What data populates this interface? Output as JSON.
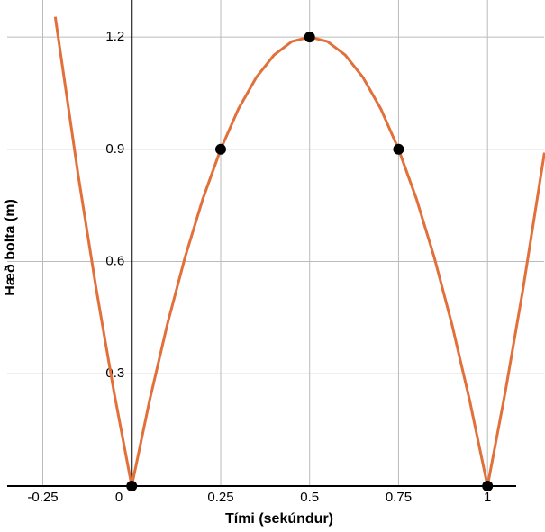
{
  "chart_data": {
    "type": "line",
    "x_label": "Tími (sekúndur)",
    "y_label": "Hæð bolta (m)",
    "xlim": [
      -0.35,
      1.159
    ],
    "ylim": [
      0,
      1.3
    ],
    "xticks": [
      -0.25,
      0,
      0.25,
      0.5,
      0.75,
      1
    ],
    "yticks": [
      0.3,
      0.6,
      0.9,
      1.2
    ],
    "grid": true,
    "series": [
      {
        "name": "curve",
        "color": "#e2703a",
        "x": [
          -0.215,
          -0.15,
          -0.1,
          -0.05,
          0,
          0.05,
          0.1,
          0.15,
          0.2,
          0.25,
          0.3,
          0.35,
          0.4,
          0.45,
          0.5,
          0.55,
          0.6,
          0.65,
          0.7,
          0.75,
          0.8,
          0.85,
          0.9,
          0.95,
          1,
          1.05,
          1.1,
          1.16
        ],
        "values": [
          1.254,
          0.828,
          0.528,
          0.252,
          0,
          0.228,
          0.432,
          0.612,
          0.768,
          0.9,
          1.008,
          1.092,
          1.152,
          1.188,
          1.2,
          1.188,
          1.152,
          1.092,
          1.008,
          0.9,
          0.768,
          0.612,
          0.432,
          0.228,
          0,
          0.252,
          0.528,
          0.891
        ]
      },
      {
        "name": "points",
        "color": "#000000",
        "x": [
          0,
          0.25,
          0.5,
          0.75,
          1
        ],
        "values": [
          0,
          0.9,
          1.2,
          0.9,
          0
        ]
      }
    ]
  }
}
